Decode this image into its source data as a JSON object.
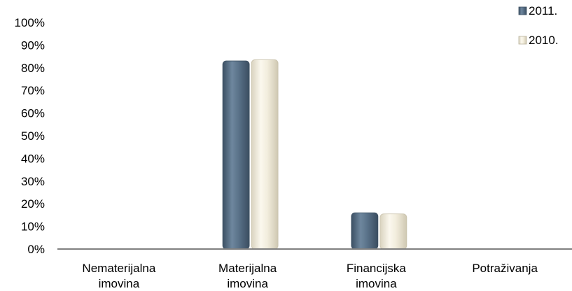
{
  "chart_data": {
    "type": "bar",
    "categories": [
      [
        "Nematerijalna",
        "imovina"
      ],
      [
        "Materijalna",
        "imovina"
      ],
      [
        "Financijska",
        "imovina"
      ],
      [
        "Potraživanja"
      ]
    ],
    "series": [
      {
        "name": "2011.",
        "values": [
          0,
          83,
          16,
          0
        ],
        "color": "#566f87"
      },
      {
        "name": "2010.",
        "values": [
          0,
          83.5,
          15.5,
          0
        ],
        "color": "#f1ede0"
      }
    ],
    "y_ticks": [
      "0%",
      "10%",
      "20%",
      "30%",
      "40%",
      "50%",
      "60%",
      "70%",
      "80%",
      "90%",
      "100%"
    ],
    "ylim": [
      0,
      100
    ],
    "y_unit": "%",
    "legend_position": "top-right",
    "grid": false
  }
}
